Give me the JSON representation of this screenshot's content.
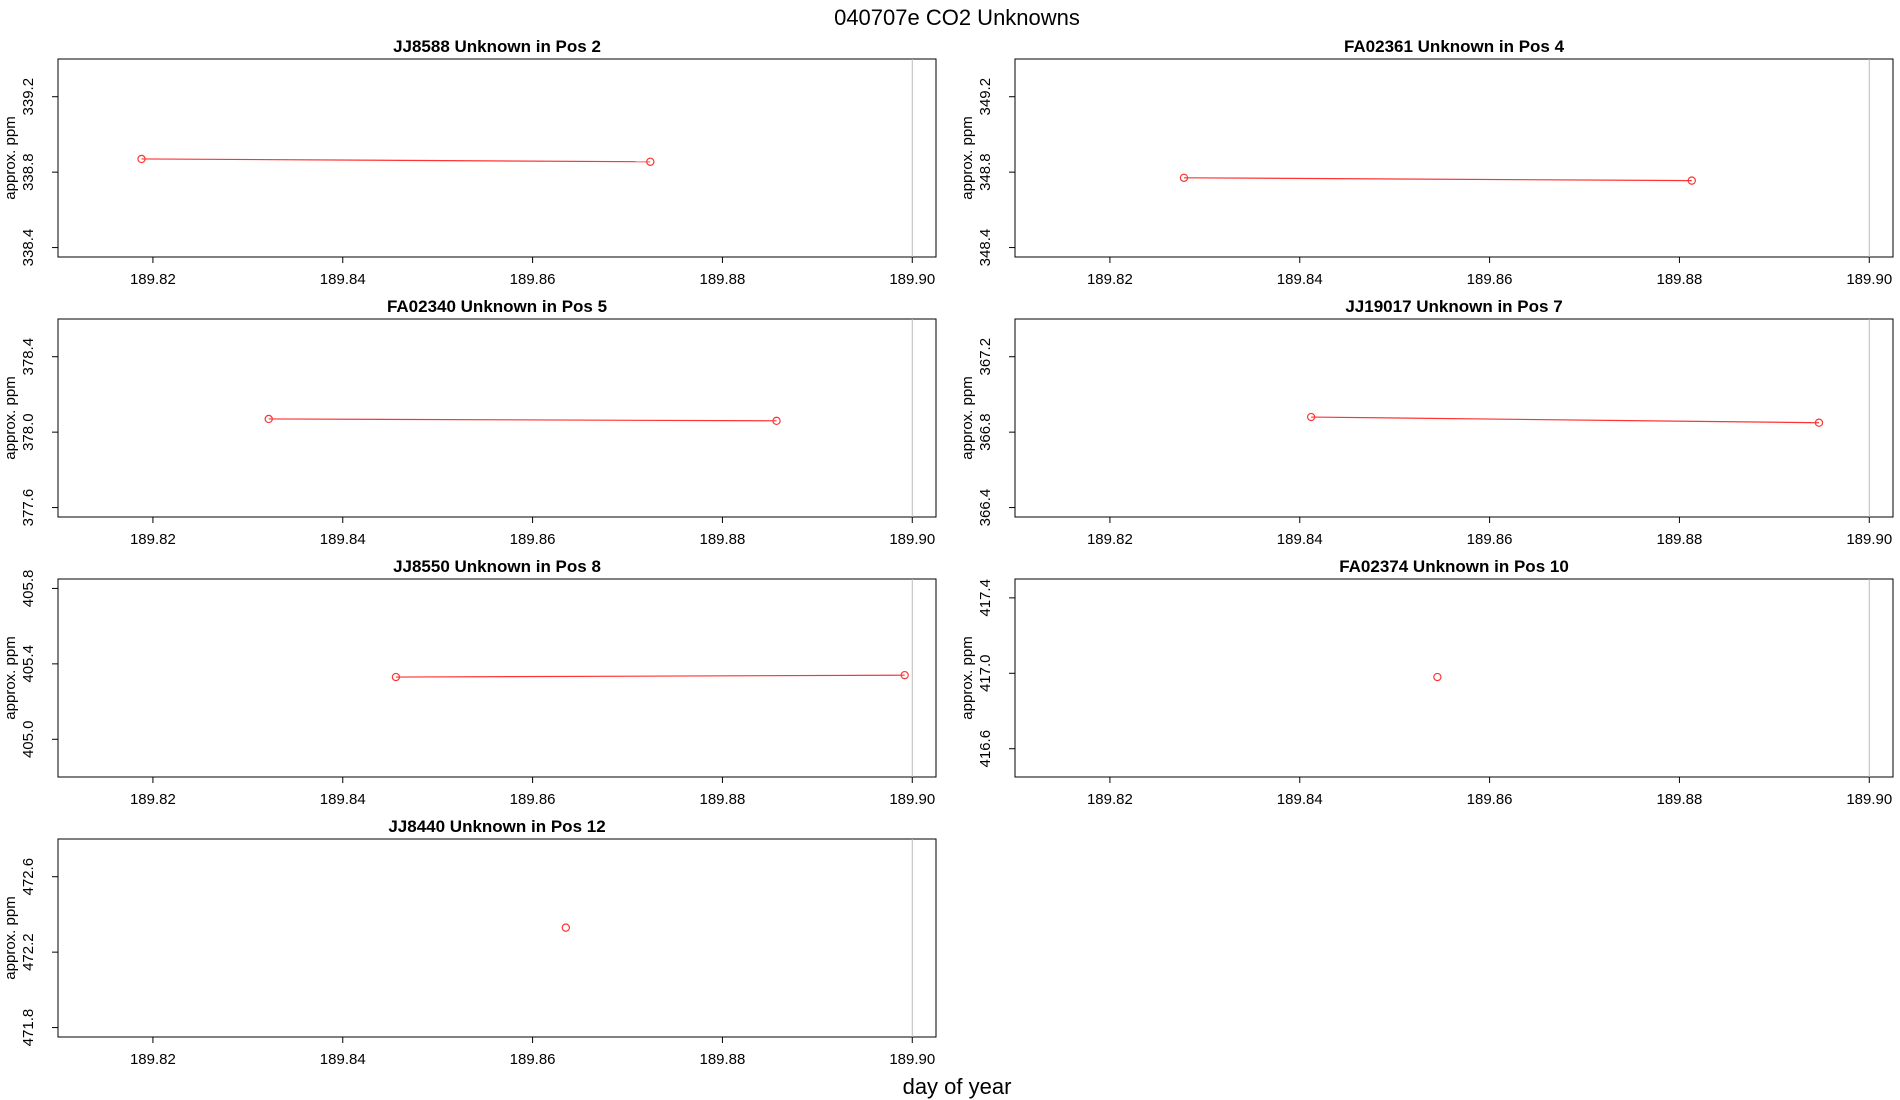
{
  "figure": {
    "title": "040707e  CO2 Unknowns",
    "xlabel": "day of year"
  },
  "colors": {
    "series": "#ff3333",
    "axis": "#000000",
    "refline": "#bbbbbb"
  },
  "chart_data": [
    {
      "type": "line",
      "title": "JJ8588    Unknown in Pos 2",
      "ylabel": "approx. ppm",
      "xlim": [
        189.81,
        189.9025
      ],
      "ylim": [
        338.35,
        339.4
      ],
      "xticks": [
        "189.82",
        "189.84",
        "189.86",
        "189.88",
        "189.90"
      ],
      "yticks": [
        "338.4",
        "338.8",
        "339.2"
      ],
      "refline_x": 189.9,
      "x": [
        189.8188,
        189.8724
      ],
      "y": [
        338.87,
        338.855
      ]
    },
    {
      "type": "line",
      "title": "FA02361    Unknown in Pos 4",
      "ylabel": "approx. ppm",
      "xlim": [
        189.81,
        189.9025
      ],
      "ylim": [
        348.35,
        349.4
      ],
      "xticks": [
        "189.82",
        "189.84",
        "189.86",
        "189.88",
        "189.90"
      ],
      "yticks": [
        "348.4",
        "348.8",
        "349.2"
      ],
      "refline_x": 189.9,
      "x": [
        189.8278,
        189.8813
      ],
      "y": [
        348.77,
        348.755
      ]
    },
    {
      "type": "line",
      "title": "FA02340    Unknown in Pos 5",
      "ylabel": "approx. ppm",
      "xlim": [
        189.81,
        189.9025
      ],
      "ylim": [
        377.55,
        378.6
      ],
      "xticks": [
        "189.82",
        "189.84",
        "189.86",
        "189.88",
        "189.90"
      ],
      "yticks": [
        "377.6",
        "378.0",
        "378.4"
      ],
      "refline_x": 189.9,
      "x": [
        189.8322,
        189.8857
      ],
      "y": [
        378.07,
        378.06
      ]
    },
    {
      "type": "line",
      "title": "JJ19017    Unknown in Pos 7",
      "ylabel": "approx. ppm",
      "xlim": [
        189.81,
        189.9025
      ],
      "ylim": [
        366.35,
        367.4
      ],
      "xticks": [
        "189.82",
        "189.84",
        "189.86",
        "189.88",
        "189.90"
      ],
      "yticks": [
        "366.4",
        "366.8",
        "367.2"
      ],
      "refline_x": 189.9,
      "x": [
        189.8412,
        189.8947
      ],
      "y": [
        366.88,
        366.85
      ]
    },
    {
      "type": "line",
      "title": "JJ8550    Unknown in Pos 8",
      "ylabel": "approx. ppm",
      "xlim": [
        189.81,
        189.9025
      ],
      "ylim": [
        404.8,
        405.85
      ],
      "xticks": [
        "189.82",
        "189.84",
        "189.86",
        "189.88",
        "189.90"
      ],
      "yticks": [
        "405.0",
        "405.4",
        "405.8"
      ],
      "refline_x": 189.9,
      "x": [
        189.8456,
        189.8992
      ],
      "y": [
        405.33,
        405.34
      ]
    },
    {
      "type": "scatter",
      "title": "FA02374    Unknown in Pos 10",
      "ylabel": "approx. ppm",
      "xlim": [
        189.81,
        189.9025
      ],
      "ylim": [
        416.45,
        417.5
      ],
      "xticks": [
        "189.82",
        "189.84",
        "189.86",
        "189.88",
        "189.90"
      ],
      "yticks": [
        "416.6",
        "417.0",
        "417.4"
      ],
      "refline_x": 189.9,
      "x": [
        189.8545
      ],
      "y": [
        416.98
      ]
    },
    {
      "type": "scatter",
      "title": "JJ8440    Unknown in Pos 12",
      "ylabel": "approx. ppm",
      "xlim": [
        189.81,
        189.9025
      ],
      "ylim": [
        471.75,
        472.8
      ],
      "xticks": [
        "189.82",
        "189.84",
        "189.86",
        "189.88",
        "189.90"
      ],
      "yticks": [
        "471.8",
        "472.2",
        "472.6"
      ],
      "refline_x": 189.9,
      "x": [
        189.8635
      ],
      "y": [
        472.33
      ]
    }
  ]
}
